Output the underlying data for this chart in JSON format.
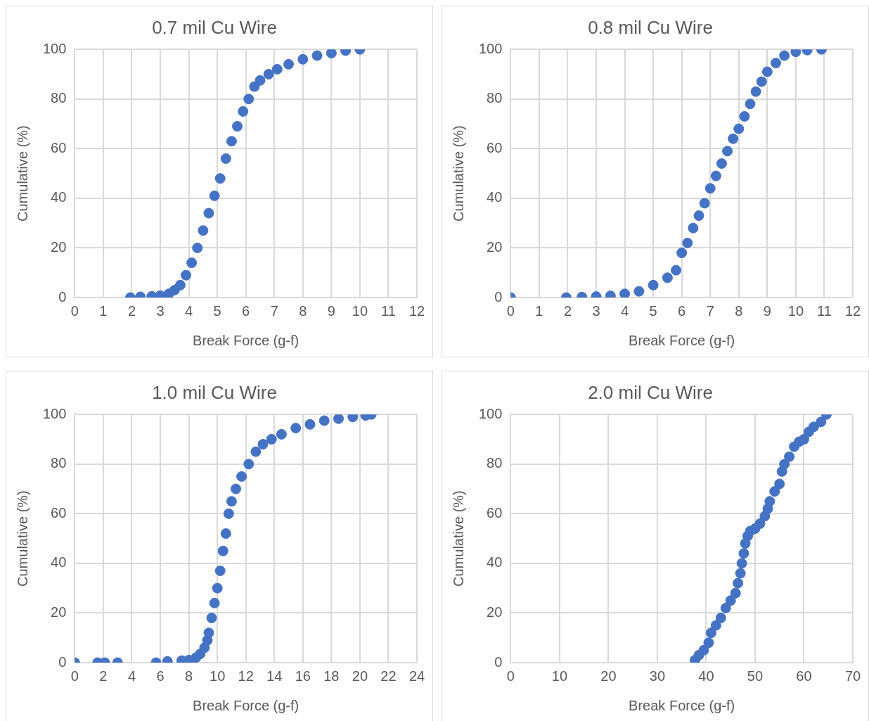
{
  "chart_data": [
    {
      "type": "scatter",
      "title": "0.7 mil Cu Wire",
      "xlabel": "Break Force (g-f)",
      "ylabel": "Cumulative (%)",
      "color": "#4472c4",
      "marker": "circle",
      "grid": true,
      "xlim": [
        0,
        12
      ],
      "xticks": [
        0,
        1,
        2,
        3,
        4,
        5,
        6,
        7,
        8,
        9,
        10,
        11,
        12
      ],
      "ylim": [
        0,
        100
      ],
      "yticks": [
        0,
        20,
        40,
        60,
        80,
        100
      ],
      "x": [
        1.95,
        2.3,
        2.7,
        3.0,
        3.3,
        3.5,
        3.7,
        3.9,
        4.1,
        4.3,
        4.5,
        4.7,
        4.9,
        5.1,
        5.3,
        5.5,
        5.7,
        5.9,
        6.1,
        6.3,
        6.5,
        6.8,
        7.1,
        7.5,
        8.0,
        8.5,
        9.0,
        9.5,
        10.0
      ],
      "values": [
        0,
        0.3,
        0.5,
        0.8,
        1.5,
        3,
        5,
        9,
        14,
        20,
        27,
        34,
        41,
        48,
        56,
        63,
        69,
        75,
        80,
        85,
        87.5,
        90,
        92,
        94,
        96,
        97.5,
        98.5,
        99.5,
        100
      ]
    },
    {
      "type": "scatter",
      "title": "0.8 mil Cu Wire",
      "xlabel": "Break Force (g-f)",
      "ylabel": "Cumulative (%)",
      "color": "#4472c4",
      "marker": "circle",
      "grid": true,
      "xlim": [
        0,
        12
      ],
      "xticks": [
        0,
        1,
        2,
        3,
        4,
        5,
        6,
        7,
        8,
        9,
        10,
        11,
        12
      ],
      "ylim": [
        0,
        100
      ],
      "yticks": [
        0,
        20,
        40,
        60,
        80,
        100
      ],
      "x": [
        0,
        1.95,
        2.5,
        3.0,
        3.5,
        4.0,
        4.5,
        5.0,
        5.5,
        5.8,
        6.0,
        6.2,
        6.4,
        6.6,
        6.8,
        7.0,
        7.2,
        7.4,
        7.6,
        7.8,
        8.0,
        8.2,
        8.4,
        8.6,
        8.8,
        9.0,
        9.3,
        9.6,
        10.0,
        10.4,
        10.9
      ],
      "values": [
        0,
        0,
        0.2,
        0.4,
        0.7,
        1.5,
        2.5,
        5,
        8,
        11,
        18,
        22,
        28,
        33,
        38,
        44,
        49,
        54,
        59,
        64,
        68,
        73,
        78,
        83,
        87,
        91,
        94.5,
        97.5,
        99,
        99.7,
        100
      ]
    },
    {
      "type": "scatter",
      "title": "1.0 mil Cu Wire",
      "xlabel": "Break Force (g-f)",
      "ylabel": "Cumulative (%)",
      "color": "#4472c4",
      "marker": "circle",
      "grid": true,
      "xlim": [
        0,
        24
      ],
      "xticks": [
        0,
        2,
        4,
        6,
        8,
        10,
        12,
        14,
        16,
        18,
        20,
        22,
        24
      ],
      "ylim": [
        0,
        100
      ],
      "yticks": [
        0,
        20,
        40,
        60,
        80,
        100
      ],
      "x": [
        0,
        1.6,
        2.1,
        3.0,
        5.7,
        6.5,
        7.5,
        8.0,
        8.5,
        8.8,
        9.1,
        9.3,
        9.4,
        9.6,
        9.8,
        10.0,
        10.2,
        10.4,
        10.6,
        10.8,
        11.0,
        11.3,
        11.7,
        12.2,
        12.7,
        13.2,
        13.8,
        14.5,
        15.5,
        16.5,
        17.5,
        18.5,
        19.5,
        20.4,
        20.8
      ],
      "values": [
        0,
        0,
        0,
        0,
        0,
        0.5,
        0.8,
        1,
        2,
        3.5,
        6,
        9,
        12,
        18,
        24,
        30,
        37,
        45,
        52,
        60,
        65,
        70,
        75,
        80,
        85,
        88,
        90,
        92,
        94.5,
        96,
        97.5,
        98.3,
        99,
        99.6,
        100
      ]
    },
    {
      "type": "scatter",
      "title": "2.0 mil Cu Wire",
      "xlabel": "Break Force (g-f)",
      "ylabel": "Cumulative (%)",
      "color": "#4472c4",
      "marker": "circle",
      "grid": true,
      "xlim": [
        0,
        70
      ],
      "xticks": [
        0,
        10,
        20,
        30,
        40,
        50,
        60,
        70
      ],
      "ylim": [
        0,
        100
      ],
      "yticks": [
        0,
        20,
        40,
        60,
        80,
        100
      ],
      "x": [
        37.7,
        38.5,
        39.5,
        40.5,
        41,
        42,
        43,
        44,
        45,
        46,
        46.5,
        47,
        47.3,
        47.7,
        48,
        48.5,
        49,
        50,
        51,
        52,
        52.6,
        53,
        54,
        55,
        55.5,
        56,
        57,
        58,
        59,
        60,
        61,
        62,
        63.5,
        64.6
      ],
      "values": [
        1,
        3,
        5,
        8,
        12,
        15,
        18,
        22,
        25,
        28,
        32,
        36,
        40,
        44,
        48,
        51,
        53,
        54,
        56,
        59,
        62,
        65,
        69,
        72,
        77,
        80,
        83,
        87,
        89,
        90,
        93,
        95,
        97,
        100
      ]
    }
  ]
}
